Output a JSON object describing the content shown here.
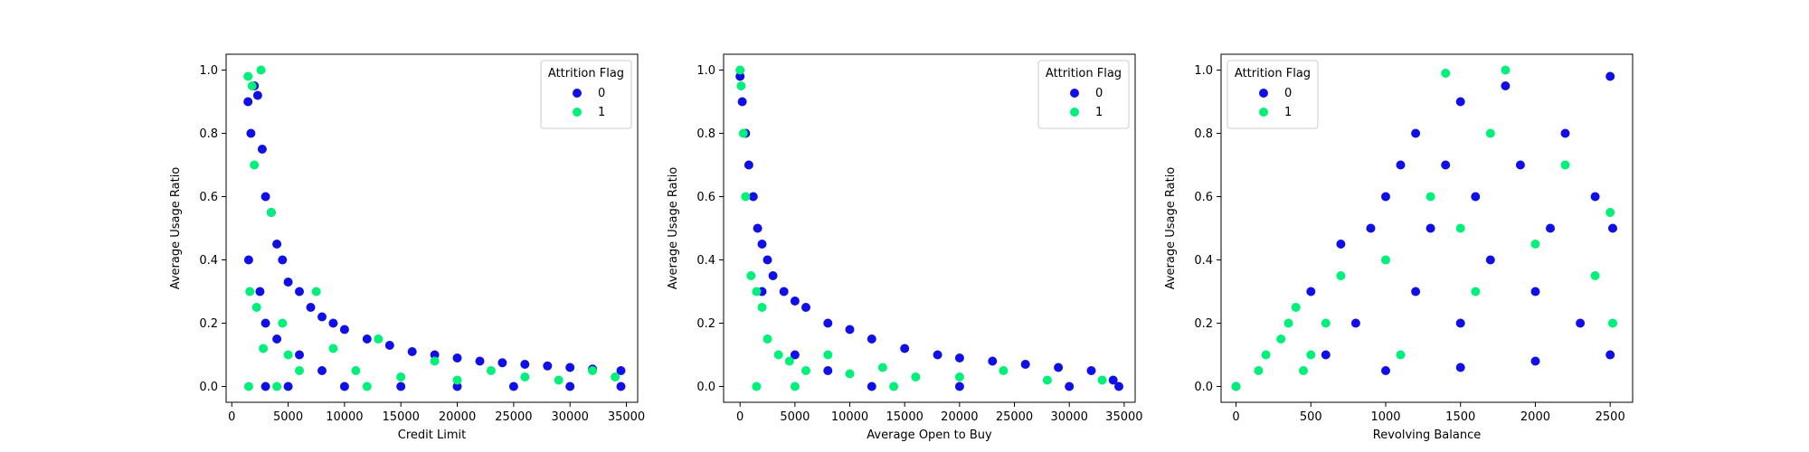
{
  "figure": {
    "colors": {
      "class_0": "#1010e6",
      "class_1": "#00f07a"
    }
  },
  "chart_data": [
    {
      "type": "scatter",
      "xlabel": "Credit Limit",
      "ylabel": "Average Usage Ratio",
      "xlim": [
        -500,
        36000
      ],
      "ylim": [
        -0.05,
        1.05
      ],
      "xticks": [
        0,
        5000,
        10000,
        15000,
        20000,
        25000,
        30000,
        35000
      ],
      "yticks": [
        0.0,
        0.2,
        0.4,
        0.6,
        0.8,
        1.0
      ],
      "legend": {
        "title": "Attrition Flag",
        "entries": [
          "0",
          "1"
        ],
        "position": "top-right"
      },
      "series": [
        {
          "name": "0",
          "points": [
            [
              1438,
              0.9
            ],
            [
              1700,
              0.8
            ],
            [
              2000,
              0.95
            ],
            [
              2300,
              0.92
            ],
            [
              2700,
              0.75
            ],
            [
              3000,
              0.6
            ],
            [
              3500,
              0.55
            ],
            [
              4000,
              0.45
            ],
            [
              4500,
              0.4
            ],
            [
              5000,
              0.33
            ],
            [
              6000,
              0.3
            ],
            [
              7000,
              0.25
            ],
            [
              8000,
              0.22
            ],
            [
              9000,
              0.2
            ],
            [
              10000,
              0.18
            ],
            [
              12000,
              0.15
            ],
            [
              14000,
              0.13
            ],
            [
              16000,
              0.11
            ],
            [
              18000,
              0.1
            ],
            [
              20000,
              0.09
            ],
            [
              22000,
              0.08
            ],
            [
              24000,
              0.075
            ],
            [
              26000,
              0.07
            ],
            [
              28000,
              0.065
            ],
            [
              30000,
              0.06
            ],
            [
              32000,
              0.055
            ],
            [
              34516,
              0.05
            ],
            [
              1500,
              0.4
            ],
            [
              2500,
              0.3
            ],
            [
              3000,
              0.2
            ],
            [
              4000,
              0.15
            ],
            [
              6000,
              0.1
            ],
            [
              8000,
              0.05
            ],
            [
              10000,
              0.0
            ],
            [
              15000,
              0.0
            ],
            [
              20000,
              0.0
            ],
            [
              25000,
              0.0
            ],
            [
              30000,
              0.0
            ],
            [
              34516,
              0.0
            ],
            [
              3000,
              0.0
            ],
            [
              5000,
              0.0
            ]
          ]
        },
        {
          "name": "1",
          "points": [
            [
              1438,
              0.98
            ],
            [
              1800,
              0.95
            ],
            [
              2600,
              1.0
            ],
            [
              2000,
              0.7
            ],
            [
              1600,
              0.3
            ],
            [
              2200,
              0.25
            ],
            [
              2800,
              0.12
            ],
            [
              3500,
              0.55
            ],
            [
              4500,
              0.2
            ],
            [
              5000,
              0.1
            ],
            [
              6000,
              0.05
            ],
            [
              7500,
              0.3
            ],
            [
              9000,
              0.12
            ],
            [
              11000,
              0.05
            ],
            [
              13000,
              0.15
            ],
            [
              15000,
              0.03
            ],
            [
              18000,
              0.08
            ],
            [
              20000,
              0.02
            ],
            [
              23000,
              0.05
            ],
            [
              26000,
              0.03
            ],
            [
              29000,
              0.02
            ],
            [
              32000,
              0.05
            ],
            [
              34000,
              0.03
            ],
            [
              1500,
              0.0
            ],
            [
              4000,
              0.0
            ],
            [
              12000,
              0.0
            ]
          ]
        }
      ]
    },
    {
      "type": "scatter",
      "xlabel": "Average Open to Buy",
      "ylabel": "Average Usage Ratio",
      "xlim": [
        -1500,
        36000
      ],
      "ylim": [
        -0.05,
        1.05
      ],
      "xticks": [
        0,
        5000,
        10000,
        15000,
        20000,
        25000,
        30000,
        35000
      ],
      "yticks": [
        0.0,
        0.2,
        0.4,
        0.6,
        0.8,
        1.0
      ],
      "legend": {
        "title": "Attrition Flag",
        "entries": [
          "0",
          "1"
        ],
        "position": "top-right"
      },
      "series": [
        {
          "name": "0",
          "points": [
            [
              0,
              0.98
            ],
            [
              200,
              0.9
            ],
            [
              500,
              0.8
            ],
            [
              800,
              0.7
            ],
            [
              1200,
              0.6
            ],
            [
              1600,
              0.5
            ],
            [
              2000,
              0.45
            ],
            [
              2500,
              0.4
            ],
            [
              3000,
              0.35
            ],
            [
              4000,
              0.3
            ],
            [
              5000,
              0.27
            ],
            [
              6000,
              0.25
            ],
            [
              8000,
              0.2
            ],
            [
              10000,
              0.18
            ],
            [
              12000,
              0.15
            ],
            [
              15000,
              0.12
            ],
            [
              18000,
              0.1
            ],
            [
              20000,
              0.09
            ],
            [
              23000,
              0.08
            ],
            [
              26000,
              0.07
            ],
            [
              29000,
              0.06
            ],
            [
              32000,
              0.05
            ],
            [
              34000,
              0.02
            ],
            [
              34516,
              0.0
            ],
            [
              2000,
              0.3
            ],
            [
              5000,
              0.1
            ],
            [
              8000,
              0.05
            ],
            [
              12000,
              0.0
            ],
            [
              20000,
              0.0
            ],
            [
              30000,
              0.0
            ]
          ]
        },
        {
          "name": "1",
          "points": [
            [
              0,
              1.0
            ],
            [
              100,
              0.95
            ],
            [
              300,
              0.8
            ],
            [
              500,
              0.6
            ],
            [
              1000,
              0.35
            ],
            [
              1500,
              0.3
            ],
            [
              2000,
              0.25
            ],
            [
              2500,
              0.15
            ],
            [
              3500,
              0.1
            ],
            [
              4500,
              0.08
            ],
            [
              6000,
              0.05
            ],
            [
              8000,
              0.1
            ],
            [
              10000,
              0.04
            ],
            [
              13000,
              0.06
            ],
            [
              16000,
              0.03
            ],
            [
              20000,
              0.03
            ],
            [
              24000,
              0.05
            ],
            [
              28000,
              0.02
            ],
            [
              33000,
              0.02
            ],
            [
              1500,
              0.0
            ],
            [
              5000,
              0.0
            ],
            [
              14000,
              0.0
            ]
          ]
        }
      ]
    },
    {
      "type": "scatter",
      "xlabel": "Revolving Balance",
      "ylabel": "Average Usage Ratio",
      "xlim": [
        -100,
        2650
      ],
      "ylim": [
        -0.05,
        1.05
      ],
      "xticks": [
        0,
        500,
        1000,
        1500,
        2000,
        2500
      ],
      "yticks": [
        0.0,
        0.2,
        0.4,
        0.6,
        0.8,
        1.0
      ],
      "legend": {
        "title": "Attrition Flag",
        "entries": [
          "0",
          "1"
        ],
        "position": "top-left"
      },
      "series": [
        {
          "name": "0",
          "points": [
            [
              0,
              0.0
            ],
            [
              500,
              0.3
            ],
            [
              600,
              0.1
            ],
            [
              700,
              0.45
            ],
            [
              800,
              0.2
            ],
            [
              900,
              0.5
            ],
            [
              1000,
              0.6
            ],
            [
              1100,
              0.7
            ],
            [
              1200,
              0.8
            ],
            [
              1200,
              0.3
            ],
            [
              1300,
              0.5
            ],
            [
              1400,
              0.7
            ],
            [
              1500,
              0.9
            ],
            [
              1500,
              0.2
            ],
            [
              1600,
              0.6
            ],
            [
              1700,
              0.4
            ],
            [
              1800,
              0.95
            ],
            [
              1900,
              0.7
            ],
            [
              2000,
              0.3
            ],
            [
              2100,
              0.5
            ],
            [
              2200,
              0.8
            ],
            [
              2300,
              0.2
            ],
            [
              2400,
              0.6
            ],
            [
              2500,
              0.98
            ],
            [
              2500,
              0.1
            ],
            [
              2517,
              0.5
            ],
            [
              1000,
              0.05
            ],
            [
              1500,
              0.06
            ],
            [
              2000,
              0.08
            ]
          ]
        },
        {
          "name": "1",
          "points": [
            [
              0,
              0.0
            ],
            [
              150,
              0.05
            ],
            [
              200,
              0.1
            ],
            [
              300,
              0.15
            ],
            [
              350,
              0.2
            ],
            [
              400,
              0.25
            ],
            [
              450,
              0.05
            ],
            [
              500,
              0.1
            ],
            [
              600,
              0.2
            ],
            [
              700,
              0.35
            ],
            [
              1000,
              0.4
            ],
            [
              1300,
              0.6
            ],
            [
              1400,
              0.99
            ],
            [
              1600,
              0.3
            ],
            [
              1700,
              0.8
            ],
            [
              1800,
              1.0
            ],
            [
              2000,
              0.45
            ],
            [
              2200,
              0.7
            ],
            [
              2400,
              0.35
            ],
            [
              2500,
              0.55
            ],
            [
              2517,
              0.2
            ],
            [
              1100,
              0.1
            ],
            [
              1500,
              0.5
            ]
          ]
        }
      ]
    }
  ]
}
